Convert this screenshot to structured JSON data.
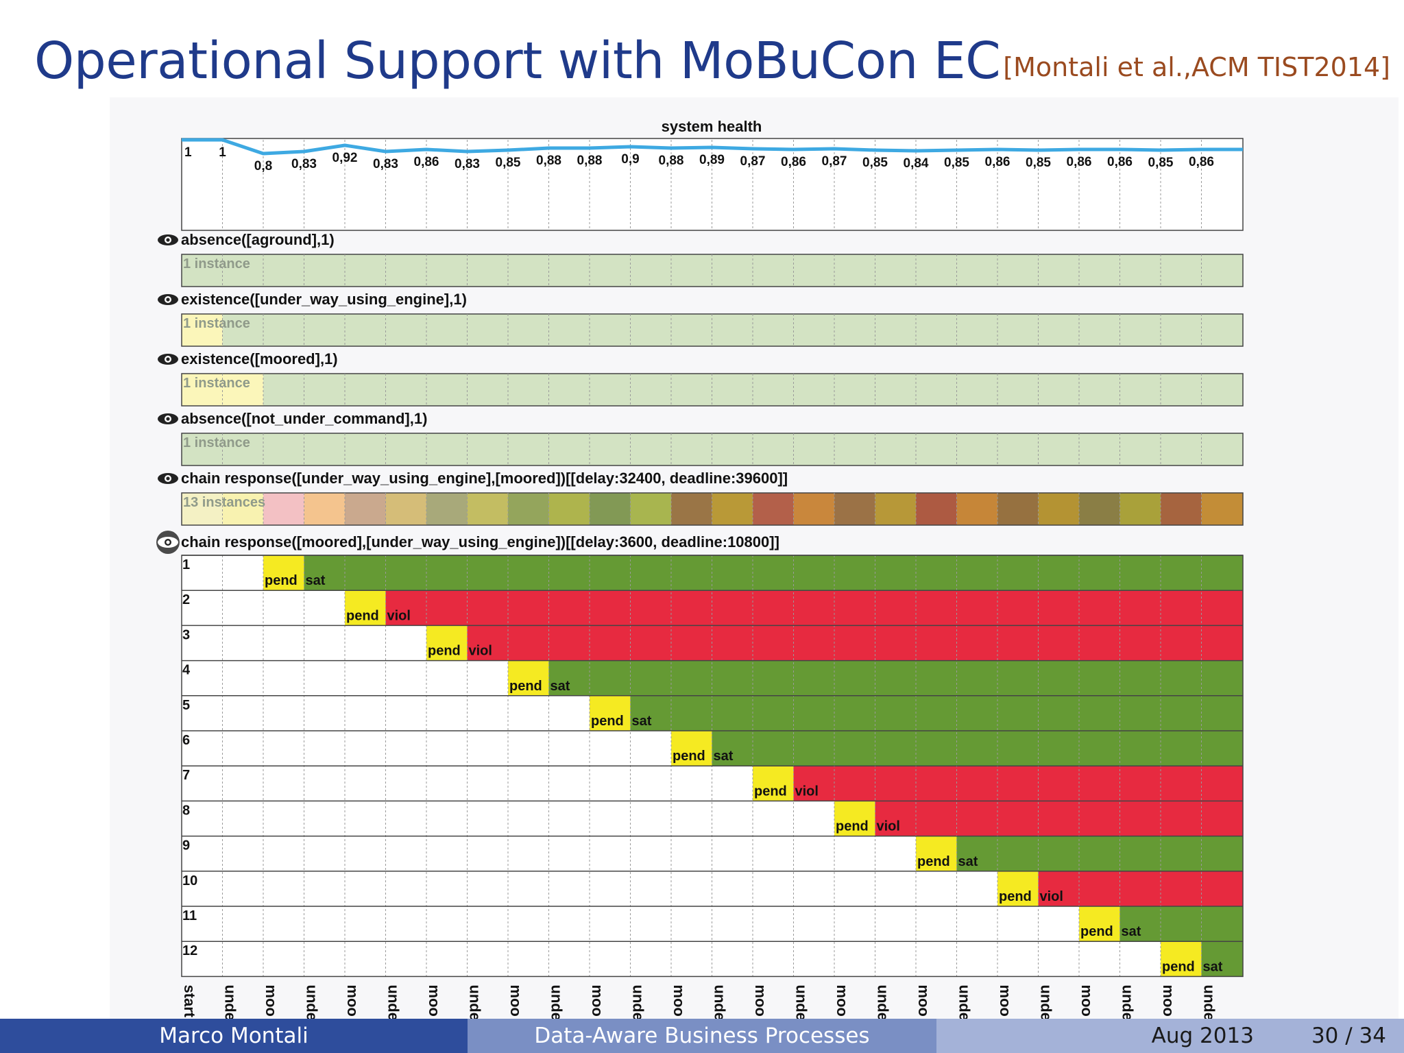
{
  "slide": {
    "title": "Operational Support with MoBuCon EC",
    "citation": "[Montali et al.,ACM TIST2014]"
  },
  "footer": {
    "author": "Marco Montali",
    "talk": "Data-Aware Business Processes",
    "date": "Aug 2013",
    "page": "30 / 34"
  },
  "monitor": {
    "health_title": "system health",
    "health_values": [
      "1",
      "1",
      "0,8",
      "0,83",
      "0,92",
      "0,83",
      "0,86",
      "0,83",
      "0,85",
      "0,88",
      "0,88",
      "0,9",
      "0,88",
      "0,89",
      "0,87",
      "0,86",
      "0,87",
      "0,85",
      "0,84",
      "0,85",
      "0,86",
      "0,85",
      "0,86",
      "0,86",
      "0,85",
      "0,86"
    ],
    "health_line_color": "#3ea9e2",
    "constraints": [
      {
        "label": "absence([aground],1)",
        "instances": "1 instance",
        "cells": [
          "#d3e3c3",
          "#d3e3c3",
          "#d3e3c3",
          "#d3e3c3",
          "#d3e3c3",
          "#d3e3c3",
          "#d3e3c3",
          "#d3e3c3",
          "#d3e3c3",
          "#d3e3c3",
          "#d3e3c3",
          "#d3e3c3",
          "#d3e3c3",
          "#d3e3c3",
          "#d3e3c3",
          "#d3e3c3",
          "#d3e3c3",
          "#d3e3c3",
          "#d3e3c3",
          "#d3e3c3",
          "#d3e3c3",
          "#d3e3c3",
          "#d3e3c3",
          "#d3e3c3",
          "#d3e3c3",
          "#d3e3c3"
        ]
      },
      {
        "label": "existence([under_way_using_engine],1)",
        "instances": "1 instance",
        "cells": [
          "#fbf6ba",
          "#d3e3c3",
          "#d3e3c3",
          "#d3e3c3",
          "#d3e3c3",
          "#d3e3c3",
          "#d3e3c3",
          "#d3e3c3",
          "#d3e3c3",
          "#d3e3c3",
          "#d3e3c3",
          "#d3e3c3",
          "#d3e3c3",
          "#d3e3c3",
          "#d3e3c3",
          "#d3e3c3",
          "#d3e3c3",
          "#d3e3c3",
          "#d3e3c3",
          "#d3e3c3",
          "#d3e3c3",
          "#d3e3c3",
          "#d3e3c3",
          "#d3e3c3",
          "#d3e3c3",
          "#d3e3c3"
        ]
      },
      {
        "label": "existence([moored],1)",
        "instances": "1 instance",
        "cells": [
          "#fbf6ba",
          "#fbf6ba",
          "#d3e3c3",
          "#d3e3c3",
          "#d3e3c3",
          "#d3e3c3",
          "#d3e3c3",
          "#d3e3c3",
          "#d3e3c3",
          "#d3e3c3",
          "#d3e3c3",
          "#d3e3c3",
          "#d3e3c3",
          "#d3e3c3",
          "#d3e3c3",
          "#d3e3c3",
          "#d3e3c3",
          "#d3e3c3",
          "#d3e3c3",
          "#d3e3c3",
          "#d3e3c3",
          "#d3e3c3",
          "#d3e3c3",
          "#d3e3c3",
          "#d3e3c3",
          "#d3e3c3"
        ]
      },
      {
        "label": "absence([not_under_command],1)",
        "instances": "1 instance",
        "cells": [
          "#d3e3c3",
          "#d3e3c3",
          "#d3e3c3",
          "#d3e3c3",
          "#d3e3c3",
          "#d3e3c3",
          "#d3e3c3",
          "#d3e3c3",
          "#d3e3c3",
          "#d3e3c3",
          "#d3e3c3",
          "#d3e3c3",
          "#d3e3c3",
          "#d3e3c3",
          "#d3e3c3",
          "#d3e3c3",
          "#d3e3c3",
          "#d3e3c3",
          "#d3e3c3",
          "#d3e3c3",
          "#d3e3c3",
          "#d3e3c3",
          "#d3e3c3",
          "#d3e3c3",
          "#d3e3c3",
          "#d3e3c3"
        ]
      },
      {
        "label": "chain response([under_way_using_engine],[moored])[[delay:32400, deadline:39600]]",
        "instances": "13 instances",
        "cells": [
          "#f4f1c4",
          "#f8f2b0",
          "#f3c1c4",
          "#f4c48e",
          "#caa98e",
          "#d5bd78",
          "#a8a97a",
          "#c3bd62",
          "#94a55c",
          "#aeb44d",
          "#829955",
          "#a8b54f",
          "#9a7546",
          "#b99937",
          "#b3604a",
          "#c9873c",
          "#9b7246",
          "#b79838",
          "#ad5a42",
          "#c68638",
          "#967140",
          "#b49333",
          "#8a7e45",
          "#a9a13a",
          "#a6643f",
          "#c38d37"
        ]
      }
    ],
    "expanded_constraint": {
      "label": "chain response([moored],[under_way_using_engine])[[delay:3600, deadline:10800]]",
      "instances": [
        {
          "id": "1",
          "pend_label": "pend",
          "end_label": "sat"
        },
        {
          "id": "2",
          "pend_label": "pend",
          "end_label": "viol"
        },
        {
          "id": "3",
          "pend_label": "pend",
          "end_label": "viol"
        },
        {
          "id": "4",
          "pend_label": "pend",
          "end_label": "sat"
        },
        {
          "id": "5",
          "pend_label": "pend",
          "end_label": "sat"
        },
        {
          "id": "6",
          "pend_label": "pend",
          "end_label": "sat"
        },
        {
          "id": "7",
          "pend_label": "pend",
          "end_label": "viol"
        },
        {
          "id": "8",
          "pend_label": "pend",
          "end_label": "viol"
        },
        {
          "id": "9",
          "pend_label": "pend",
          "end_label": "sat"
        },
        {
          "id": "10",
          "pend_label": "pend",
          "end_label": "viol"
        },
        {
          "id": "11",
          "pend_label": "pend",
          "end_label": "sat"
        },
        {
          "id": "12",
          "pend_label": "pend",
          "end_label": "sat"
        }
      ]
    },
    "events": [
      "start",
      "unde",
      "moo",
      "unde",
      "moo",
      "unde",
      "moo",
      "unde",
      "moo",
      "unde",
      "moo",
      "unde",
      "moo",
      "unde",
      "moo",
      "unde",
      "moo",
      "unde",
      "moo",
      "unde",
      "moo",
      "unde",
      "moo",
      "unde",
      "moo",
      "unde"
    ],
    "colors": {
      "pending": "#f5ea22",
      "satisfied": "#659a34",
      "violated": "#e72a40",
      "title": "#1f3a8a",
      "citation": "#9a4a1f"
    }
  }
}
